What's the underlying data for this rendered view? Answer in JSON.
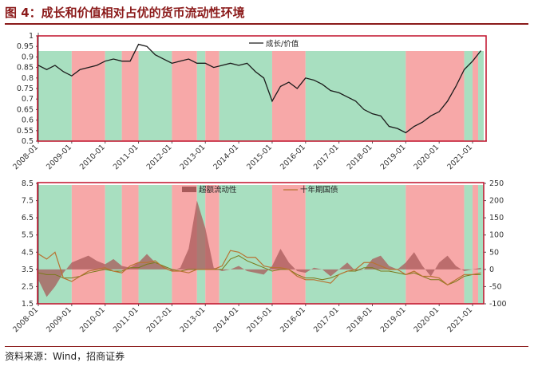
{
  "figure_title": "图 4：成长和价值相对占优的货币流动性环境",
  "source": "资料来源：Wind，招商证券",
  "colors": {
    "title": "#8b1a1a",
    "green_band": "#a8dfc0",
    "red_band": "#f7a8a8",
    "frame": "#c0102a",
    "growth_value_line": "#1a1a1a",
    "excess_liquidity_area": "#a85a5a",
    "bond_line": "#b87333",
    "olive_line": "#7a7a1a"
  },
  "chart_data": [
    {
      "type": "line",
      "series": [
        {
          "name": "成长/价值",
          "x": [
            "2008-01",
            "2008-04",
            "2008-07",
            "2008-10",
            "2009-01",
            "2009-04",
            "2009-07",
            "2009-10",
            "2010-01",
            "2010-04",
            "2010-07",
            "2010-10",
            "2011-01",
            "2011-04",
            "2011-07",
            "2011-10",
            "2012-01",
            "2012-04",
            "2012-07",
            "2012-10",
            "2013-01",
            "2013-04",
            "2013-07",
            "2013-10",
            "2014-01",
            "2014-04",
            "2014-07",
            "2014-10",
            "2015-01",
            "2015-04",
            "2015-07",
            "2015-10",
            "2016-01",
            "2016-04",
            "2016-07",
            "2016-10",
            "2017-01",
            "2017-04",
            "2017-07",
            "2017-10",
            "2018-01",
            "2018-04",
            "2018-07",
            "2018-10",
            "2019-01",
            "2019-04",
            "2019-07",
            "2019-10",
            "2020-01",
            "2020-04",
            "2020-07",
            "2020-10",
            "2021-01",
            "2021-04"
          ],
          "values": [
            0.86,
            0.84,
            0.86,
            0.83,
            0.81,
            0.84,
            0.85,
            0.86,
            0.88,
            0.89,
            0.88,
            0.88,
            0.96,
            0.95,
            0.91,
            0.89,
            0.87,
            0.88,
            0.89,
            0.87,
            0.87,
            0.85,
            0.86,
            0.87,
            0.86,
            0.87,
            0.83,
            0.8,
            0.69,
            0.76,
            0.78,
            0.75,
            0.8,
            0.79,
            0.77,
            0.74,
            0.73,
            0.71,
            0.69,
            0.65,
            0.63,
            0.62,
            0.57,
            0.56,
            0.54,
            0.57,
            0.59,
            0.62,
            0.64,
            0.69,
            0.76,
            0.84,
            0.88,
            0.93
          ]
        }
      ],
      "ylim": [
        0.5,
        1.0
      ],
      "yticks": [
        "0.5",
        "0.55",
        "0.6",
        "0.65",
        "0.7",
        "0.75",
        "0.8",
        "0.85",
        "0.9",
        "0.95",
        "1"
      ],
      "xtick_labels": [
        "2008-01",
        "2009-01",
        "2010-01",
        "2011-01",
        "2012-01",
        "2013-01",
        "2014-01",
        "2015-01",
        "2016-01",
        "2017-01",
        "2018-01",
        "2019-01",
        "2020-01",
        "2021-01"
      ],
      "legend": "top-right",
      "grid": false
    },
    {
      "type": "area",
      "series": [
        {
          "name": "超额流动性",
          "axis": "right",
          "x": [
            "2008-01",
            "2008-04",
            "2008-07",
            "2008-10",
            "2009-01",
            "2009-04",
            "2009-07",
            "2009-10",
            "2010-01",
            "2010-04",
            "2010-07",
            "2010-10",
            "2011-01",
            "2011-04",
            "2011-07",
            "2011-10",
            "2012-01",
            "2012-04",
            "2012-07",
            "2012-10",
            "2013-01",
            "2013-04",
            "2013-07",
            "2013-10",
            "2014-01",
            "2014-04",
            "2014-07",
            "2014-10",
            "2015-01",
            "2015-04",
            "2015-07",
            "2015-10",
            "2016-01",
            "2016-04",
            "2016-07",
            "2016-10",
            "2017-01",
            "2017-04",
            "2017-07",
            "2017-10",
            "2018-01",
            "2018-04",
            "2018-07",
            "2018-10",
            "2019-01",
            "2019-04",
            "2019-07",
            "2019-10",
            "2020-01",
            "2020-04",
            "2020-07",
            "2020-10",
            "2021-01",
            "2021-04"
          ],
          "values": [
            -30,
            -80,
            -50,
            -10,
            20,
            30,
            40,
            25,
            15,
            30,
            10,
            5,
            20,
            45,
            20,
            10,
            -5,
            5,
            60,
            200,
            120,
            5,
            -5,
            0,
            10,
            -5,
            -10,
            -15,
            10,
            60,
            20,
            -5,
            -10,
            5,
            0,
            -20,
            0,
            20,
            -5,
            0,
            30,
            40,
            10,
            0,
            20,
            50,
            10,
            -20,
            20,
            40,
            10,
            -5,
            0,
            5
          ]
        },
        {
          "name": "十年期国债",
          "axis": "left",
          "x": [
            "2008-01",
            "2008-04",
            "2008-07",
            "2008-10",
            "2009-01",
            "2009-04",
            "2009-07",
            "2009-10",
            "2010-01",
            "2010-04",
            "2010-07",
            "2010-10",
            "2011-01",
            "2011-04",
            "2011-07",
            "2011-10",
            "2012-01",
            "2012-04",
            "2012-07",
            "2012-10",
            "2013-01",
            "2013-04",
            "2013-07",
            "2013-10",
            "2014-01",
            "2014-04",
            "2014-07",
            "2014-10",
            "2015-01",
            "2015-04",
            "2015-07",
            "2015-10",
            "2016-01",
            "2016-04",
            "2016-07",
            "2016-10",
            "2017-01",
            "2017-04",
            "2017-07",
            "2017-10",
            "2018-01",
            "2018-04",
            "2018-07",
            "2018-10",
            "2019-01",
            "2019-04",
            "2019-07",
            "2019-10",
            "2020-01",
            "2020-04",
            "2020-07",
            "2020-10",
            "2021-01",
            "2021-04"
          ],
          "values": [
            4.4,
            4.1,
            4.5,
            3.0,
            2.8,
            3.1,
            3.4,
            3.5,
            3.6,
            3.4,
            3.3,
            3.7,
            3.9,
            3.9,
            4.0,
            3.6,
            3.4,
            3.4,
            3.3,
            3.5,
            3.5,
            3.5,
            3.7,
            4.6,
            4.5,
            4.2,
            4.2,
            3.7,
            3.6,
            3.6,
            3.5,
            3.1,
            2.9,
            2.9,
            2.8,
            2.7,
            3.2,
            3.4,
            3.5,
            3.9,
            3.9,
            3.7,
            3.5,
            3.5,
            3.2,
            3.4,
            3.1,
            3.1,
            3.0,
            2.6,
            2.9,
            3.2,
            3.2,
            3.3
          ]
        },
        {
          "name": "",
          "axis": "left",
          "x": [
            "2008-01",
            "2008-04",
            "2008-07",
            "2008-10",
            "2009-01",
            "2009-04",
            "2009-07",
            "2009-10",
            "2010-01",
            "2010-04",
            "2010-07",
            "2010-10",
            "2011-01",
            "2011-04",
            "2011-07",
            "2011-10",
            "2012-01",
            "2012-04",
            "2012-07",
            "2012-10",
            "2013-01",
            "2013-04",
            "2013-07",
            "2013-10",
            "2014-01",
            "2014-04",
            "2014-07",
            "2014-10",
            "2015-01",
            "2015-04",
            "2015-07",
            "2015-10",
            "2016-01",
            "2016-04",
            "2016-07",
            "2016-10",
            "2017-01",
            "2017-04",
            "2017-07",
            "2017-10",
            "2018-01",
            "2018-04",
            "2018-07",
            "2018-10",
            "2019-01",
            "2019-04",
            "2019-07",
            "2019-10",
            "2020-01",
            "2020-04",
            "2020-07",
            "2020-10",
            "2021-01",
            "2021-04"
          ],
          "values": [
            3.3,
            3.2,
            3.2,
            3.0,
            3.0,
            3.1,
            3.3,
            3.4,
            3.5,
            3.4,
            3.4,
            3.6,
            3.6,
            3.8,
            3.9,
            3.7,
            3.5,
            3.4,
            3.5,
            3.5,
            3.5,
            3.5,
            3.5,
            4.1,
            4.3,
            4.0,
            3.8,
            3.6,
            3.4,
            3.5,
            3.5,
            3.2,
            3.0,
            3.0,
            2.9,
            3.0,
            3.2,
            3.4,
            3.4,
            3.6,
            3.6,
            3.4,
            3.4,
            3.3,
            3.2,
            3.3,
            3.1,
            2.9,
            2.9,
            2.6,
            2.8,
            3.1,
            3.2,
            3.2
          ]
        }
      ],
      "ylim_left": [
        1.5,
        8.5
      ],
      "ylim_right": [
        -100,
        250
      ],
      "yticks_left": [
        "1.5",
        "2.5",
        "3.5",
        "4.5",
        "5.5",
        "6.5",
        "7.5",
        "8.5"
      ],
      "yticks_right": [
        "-100",
        "-50",
        "0",
        "50",
        "100",
        "150",
        "200",
        "250"
      ],
      "xtick_labels": [
        "2008-01",
        "2009-01",
        "2010-01",
        "2011-01",
        "2012-01",
        "2013-01",
        "2014-01",
        "2015-01",
        "2016-01",
        "2017-01",
        "2018-01",
        "2019-01",
        "2020-01",
        "2021-01"
      ],
      "legend": "top",
      "grid": false
    }
  ],
  "regimes": [
    {
      "start": "2008-01",
      "end": "2009-01",
      "color": "green"
    },
    {
      "start": "2009-01",
      "end": "2010-01",
      "color": "red"
    },
    {
      "start": "2010-01",
      "end": "2010-07",
      "color": "green"
    },
    {
      "start": "2010-07",
      "end": "2011-01",
      "color": "red"
    },
    {
      "start": "2011-01",
      "end": "2012-01",
      "color": "green"
    },
    {
      "start": "2012-01",
      "end": "2012-10",
      "color": "red"
    },
    {
      "start": "2012-10",
      "end": "2013-01",
      "color": "green"
    },
    {
      "start": "2013-01",
      "end": "2013-06",
      "color": "red"
    },
    {
      "start": "2013-06",
      "end": "2015-01",
      "color": "green"
    },
    {
      "start": "2015-01",
      "end": "2016-01",
      "color": "red"
    },
    {
      "start": "2016-01",
      "end": "2019-01",
      "color": "green"
    },
    {
      "start": "2019-01",
      "end": "2020-10",
      "color": "red"
    },
    {
      "start": "2020-10",
      "end": "2021-01",
      "color": "green"
    },
    {
      "start": "2021-01",
      "end": "2021-03",
      "color": "red"
    },
    {
      "start": "2021-03",
      "end": "2021-05",
      "color": "green"
    }
  ]
}
